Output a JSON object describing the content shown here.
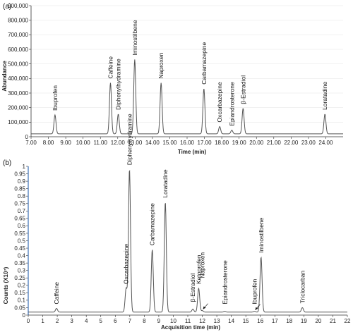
{
  "chart_data": [
    {
      "panel": "(a)",
      "type": "line",
      "xlabel": "Time (min)",
      "ylabel": "Abundance",
      "xlim": [
        7.0,
        25.0
      ],
      "ylim": [
        0,
        900000
      ],
      "x_ticks": [
        "7.00",
        "8.00",
        "9.00",
        "10.00",
        "11.00",
        "12.00",
        "13.00",
        "14.00",
        "15.00",
        "16.00",
        "17.00",
        "18.00",
        "19.00",
        "20.00",
        "21.00",
        "22.00",
        "23.00",
        "24.00"
      ],
      "y_ticks": [
        "0",
        "100,000",
        "200,000",
        "300,000",
        "400,000",
        "500,000",
        "600,000",
        "700,000",
        "800,000",
        "900,000"
      ],
      "baseline": 20000,
      "color": "#555555",
      "peaks": [
        {
          "name": "Ibuprofen",
          "x": 8.38,
          "y": 150000
        },
        {
          "name": "Caffeine",
          "x": 11.58,
          "y": 370000
        },
        {
          "name": "Diphenylhydramine",
          "x": 12.03,
          "y": 155000
        },
        {
          "name": "Iminostilbene",
          "x": 12.98,
          "y": 530000
        },
        {
          "name": "Naproxen",
          "x": 14.5,
          "y": 370000
        },
        {
          "name": "Carbamazepine",
          "x": 16.97,
          "y": 330000
        },
        {
          "name": "Oxcarbazepine",
          "x": 17.88,
          "y": 70000
        },
        {
          "name": "Epiandrosterone",
          "x": 18.58,
          "y": 45000
        },
        {
          "name": "β-Estradiol",
          "x": 19.23,
          "y": 195000
        },
        {
          "name": "Loratadine",
          "x": 23.95,
          "y": 155000
        }
      ]
    },
    {
      "panel": "(b)",
      "type": "line",
      "xlabel": "Acquisition time (min)",
      "ylabel": "Counts (X10⁷)",
      "xlim": [
        0,
        22
      ],
      "ylim": [
        0,
        1.0
      ],
      "x_ticks": [
        "0",
        "1",
        "2",
        "3",
        "4",
        "5",
        "6",
        "7",
        "8",
        "9",
        "10",
        "11",
        "12",
        "13",
        "14",
        "15",
        "16",
        "17",
        "18",
        "19",
        "20",
        "21",
        "22"
      ],
      "y_ticks": [
        "0",
        "0.05",
        "0.1",
        "0.15",
        "0.2",
        "0.25",
        "0.3",
        "0.35",
        "0.4",
        "0.45",
        "0.5",
        "0.55",
        "0.6",
        "0.65",
        "0.7",
        "0.75",
        "0.8",
        "0.85",
        "0.9",
        "0.95",
        "1"
      ],
      "baseline": 0.02,
      "color": "#555555",
      "peaks": [
        {
          "name": "Caffeine",
          "x": 1.95,
          "y": 0.045
        },
        {
          "name": "Oxcarbazepine",
          "x": 6.75,
          "y": 0.18
        },
        {
          "name": "Diphenylhydramine",
          "x": 6.98,
          "y": 0.98
        },
        {
          "name": "Carbamazepine",
          "x": 8.55,
          "y": 0.44
        },
        {
          "name": "Loratadine",
          "x": 9.45,
          "y": 0.76
        },
        {
          "name": "β-Estradiol",
          "x": 11.35,
          "y": 0.04
        },
        {
          "name": "Ketoprofen",
          "x": 11.75,
          "y": 0.18
        },
        {
          "name": "Naproxen",
          "x": 12.0,
          "y": 0.03
        },
        {
          "name": "Epiandrosterone",
          "x": 13.55,
          "y": 0.025
        },
        {
          "name": "Ibuprofen",
          "x": 15.6,
          "y": 0.025
        },
        {
          "name": "Iminostilbene",
          "x": 16.05,
          "y": 0.39
        },
        {
          "name": "Triclocarban",
          "x": 18.9,
          "y": 0.05
        }
      ]
    }
  ]
}
